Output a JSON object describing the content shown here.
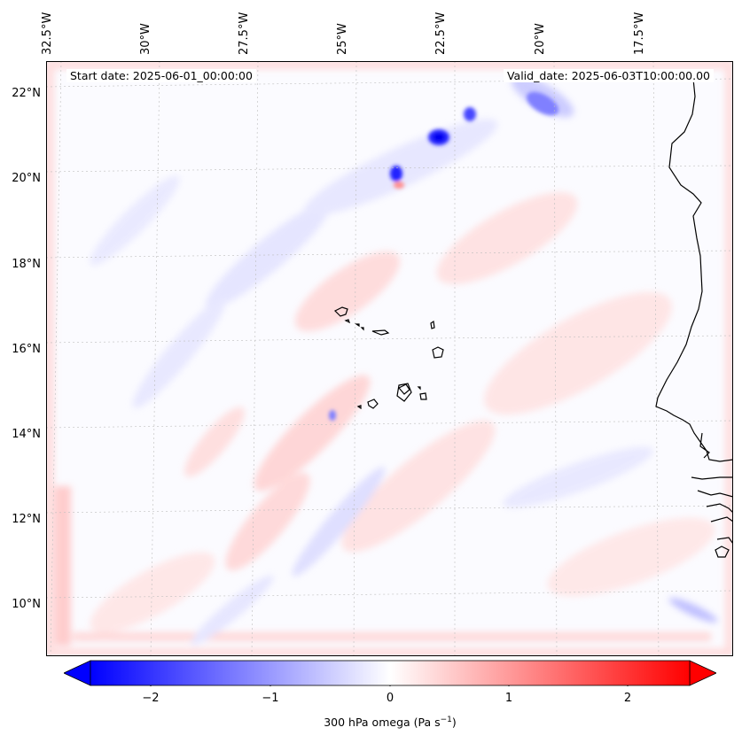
{
  "map": {
    "title_left": "Start date: 2025-06-01_00:00:00",
    "title_right": "Valid_date: 2025-06-03T10:00:00.00",
    "longitude_labels": [
      "32.5°W",
      "30°W",
      "27.5°W",
      "25°W",
      "22.5°W",
      "20°W",
      "17.5°W"
    ],
    "latitude_labels": [
      "22°N",
      "20°N",
      "18°N",
      "16°N",
      "14°N",
      "12°N",
      "10°N"
    ],
    "field": "300 hPa omega",
    "colors": {
      "negative": "#0000ff",
      "zero": "#ffffff",
      "positive": "#ff0000",
      "coast": "#000000"
    }
  },
  "colorbar": {
    "ticks": [
      "−2",
      "−1",
      "0",
      "1",
      "2"
    ],
    "label": "300 hPa omega (Pa s",
    "label_sup": "−1",
    "label_tail": ")"
  }
}
